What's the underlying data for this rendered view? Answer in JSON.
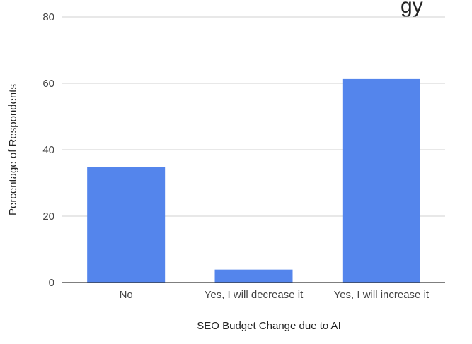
{
  "chart_data": {
    "type": "bar",
    "title_fragment": "gy",
    "xlabel": "SEO Budget Change due to AI",
    "ylabel": "Percentage of Respondents",
    "categories": [
      "No",
      "Yes, I will decrease it",
      "Yes, I will increase it"
    ],
    "values": [
      34.7,
      3.9,
      61.3
    ],
    "ylim": [
      0,
      80
    ],
    "yticks": [
      0,
      20,
      40,
      60,
      80
    ],
    "grid": true,
    "legend": "none",
    "bar_color": "#5485ec"
  }
}
